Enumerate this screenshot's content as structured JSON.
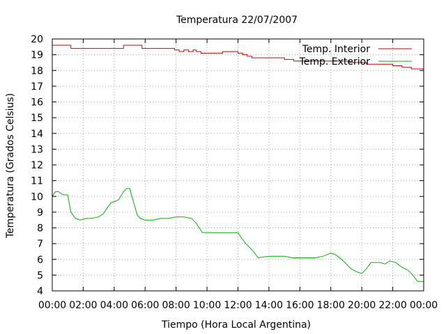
{
  "chart_data": {
    "type": "line",
    "title": "Temperatura 22/07/2007",
    "xlabel": "Tiempo (Hora Local Argentina)",
    "ylabel": "Temperatura (Grados Celsius)",
    "x_unit": "hours",
    "xlim": [
      0,
      24
    ],
    "ylim": [
      4,
      20
    ],
    "x_ticks": [
      0,
      2,
      4,
      6,
      8,
      10,
      12,
      14,
      16,
      18,
      20,
      22,
      24
    ],
    "x_tick_labels": [
      "00:00",
      "02:00",
      "04:00",
      "06:00",
      "08:00",
      "10:00",
      "12:00",
      "14:00",
      "16:00",
      "18:00",
      "20:00",
      "22:00",
      "00:00"
    ],
    "y_ticks": [
      4,
      5,
      6,
      7,
      8,
      9,
      10,
      11,
      12,
      13,
      14,
      15,
      16,
      17,
      18,
      19,
      20
    ],
    "y_tick_labels": [
      "4",
      "5",
      "6",
      "7",
      "8",
      "9",
      "10",
      "11",
      "12",
      "13",
      "14",
      "15",
      "16",
      "17",
      "18",
      "19",
      "20"
    ],
    "grid": true,
    "legend_position": "top-right",
    "series": [
      {
        "name": "Temp. Interior",
        "color": "#cc0000",
        "step": true,
        "x": [
          0,
          1.2,
          4.6,
          5.8,
          7.9,
          8.2,
          8.5,
          8.8,
          9.1,
          9.3,
          9.6,
          10,
          11,
          12,
          12.3,
          12.6,
          12.9,
          13.4,
          15,
          15.6,
          17,
          19.2,
          20.3,
          21,
          22,
          22.6,
          23.2,
          23.8,
          24
        ],
        "y": [
          19.6,
          19.4,
          19.6,
          19.4,
          19.3,
          19.2,
          19.3,
          19.2,
          19.3,
          19.2,
          19.1,
          19.1,
          19.2,
          19.1,
          19.0,
          18.9,
          18.8,
          18.8,
          18.7,
          18.6,
          18.6,
          18.5,
          18.4,
          18.4,
          18.3,
          18.2,
          18.1,
          18.1,
          17.9
        ]
      },
      {
        "name": "Temp. Exterior",
        "color": "#00b400",
        "step": false,
        "x": [
          0,
          0.2,
          0.4,
          0.7,
          1.0,
          1.2,
          1.5,
          1.8,
          2.2,
          2.5,
          3.0,
          3.3,
          3.5,
          3.8,
          4.1,
          4.3,
          4.6,
          4.8,
          5.0,
          5.2,
          5.5,
          5.7,
          6.0,
          6.5,
          7.0,
          7.5,
          8.0,
          8.5,
          9.0,
          9.3,
          9.7,
          10.5,
          11.5,
          12.0,
          12.2,
          12.5,
          12.8,
          13.0,
          13.3,
          14.0,
          15.0,
          15.5,
          16.0,
          17.0,
          17.5,
          18.0,
          18.3,
          18.7,
          19.0,
          19.3,
          19.7,
          20.0,
          20.3,
          20.6,
          20.9,
          21.2,
          21.5,
          21.8,
          22.2,
          22.6,
          23.0,
          23.3,
          23.6,
          24.0
        ],
        "y": [
          10.0,
          10.3,
          10.3,
          10.1,
          10.1,
          9.0,
          8.6,
          8.5,
          8.6,
          8.6,
          8.7,
          8.9,
          9.2,
          9.6,
          9.7,
          9.8,
          10.3,
          10.5,
          10.5,
          9.8,
          8.8,
          8.6,
          8.5,
          8.5,
          8.6,
          8.6,
          8.7,
          8.7,
          8.6,
          8.3,
          7.7,
          7.7,
          7.7,
          7.7,
          7.4,
          7.0,
          6.7,
          6.5,
          6.1,
          6.2,
          6.2,
          6.1,
          6.1,
          6.1,
          6.2,
          6.4,
          6.3,
          6.0,
          5.7,
          5.4,
          5.2,
          5.1,
          5.4,
          5.8,
          5.8,
          5.8,
          5.7,
          5.9,
          5.8,
          5.5,
          5.3,
          5.0,
          4.6,
          4.6
        ]
      }
    ]
  }
}
